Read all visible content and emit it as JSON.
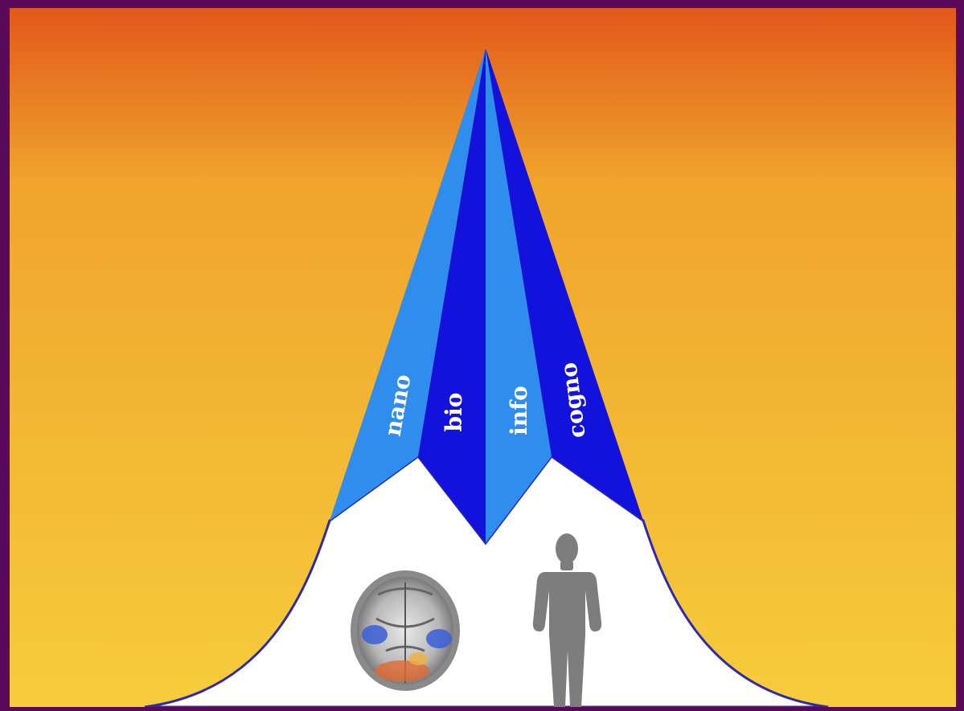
{
  "segments": [
    {
      "id": "nano",
      "label": "nano",
      "color": "#2f8dee"
    },
    {
      "id": "bio",
      "label": "bio",
      "color": "#1212dc"
    },
    {
      "id": "info",
      "label": "info",
      "color": "#2f8dee"
    },
    {
      "id": "cogno",
      "label": "cogno",
      "color": "#1212dc"
    }
  ],
  "colors": {
    "frame": "#5a0a5a",
    "sky_top": "#e2581a",
    "sky_mid": "#f0a42c",
    "sky_bottom": "#f6cc3c",
    "curve": "#ffffff",
    "curve_outline": "#2b2bb0",
    "label": "#ffffff",
    "figure": "#7d7d7d"
  },
  "icons": [
    "brain-scan-icon",
    "human-figure-icon"
  ]
}
